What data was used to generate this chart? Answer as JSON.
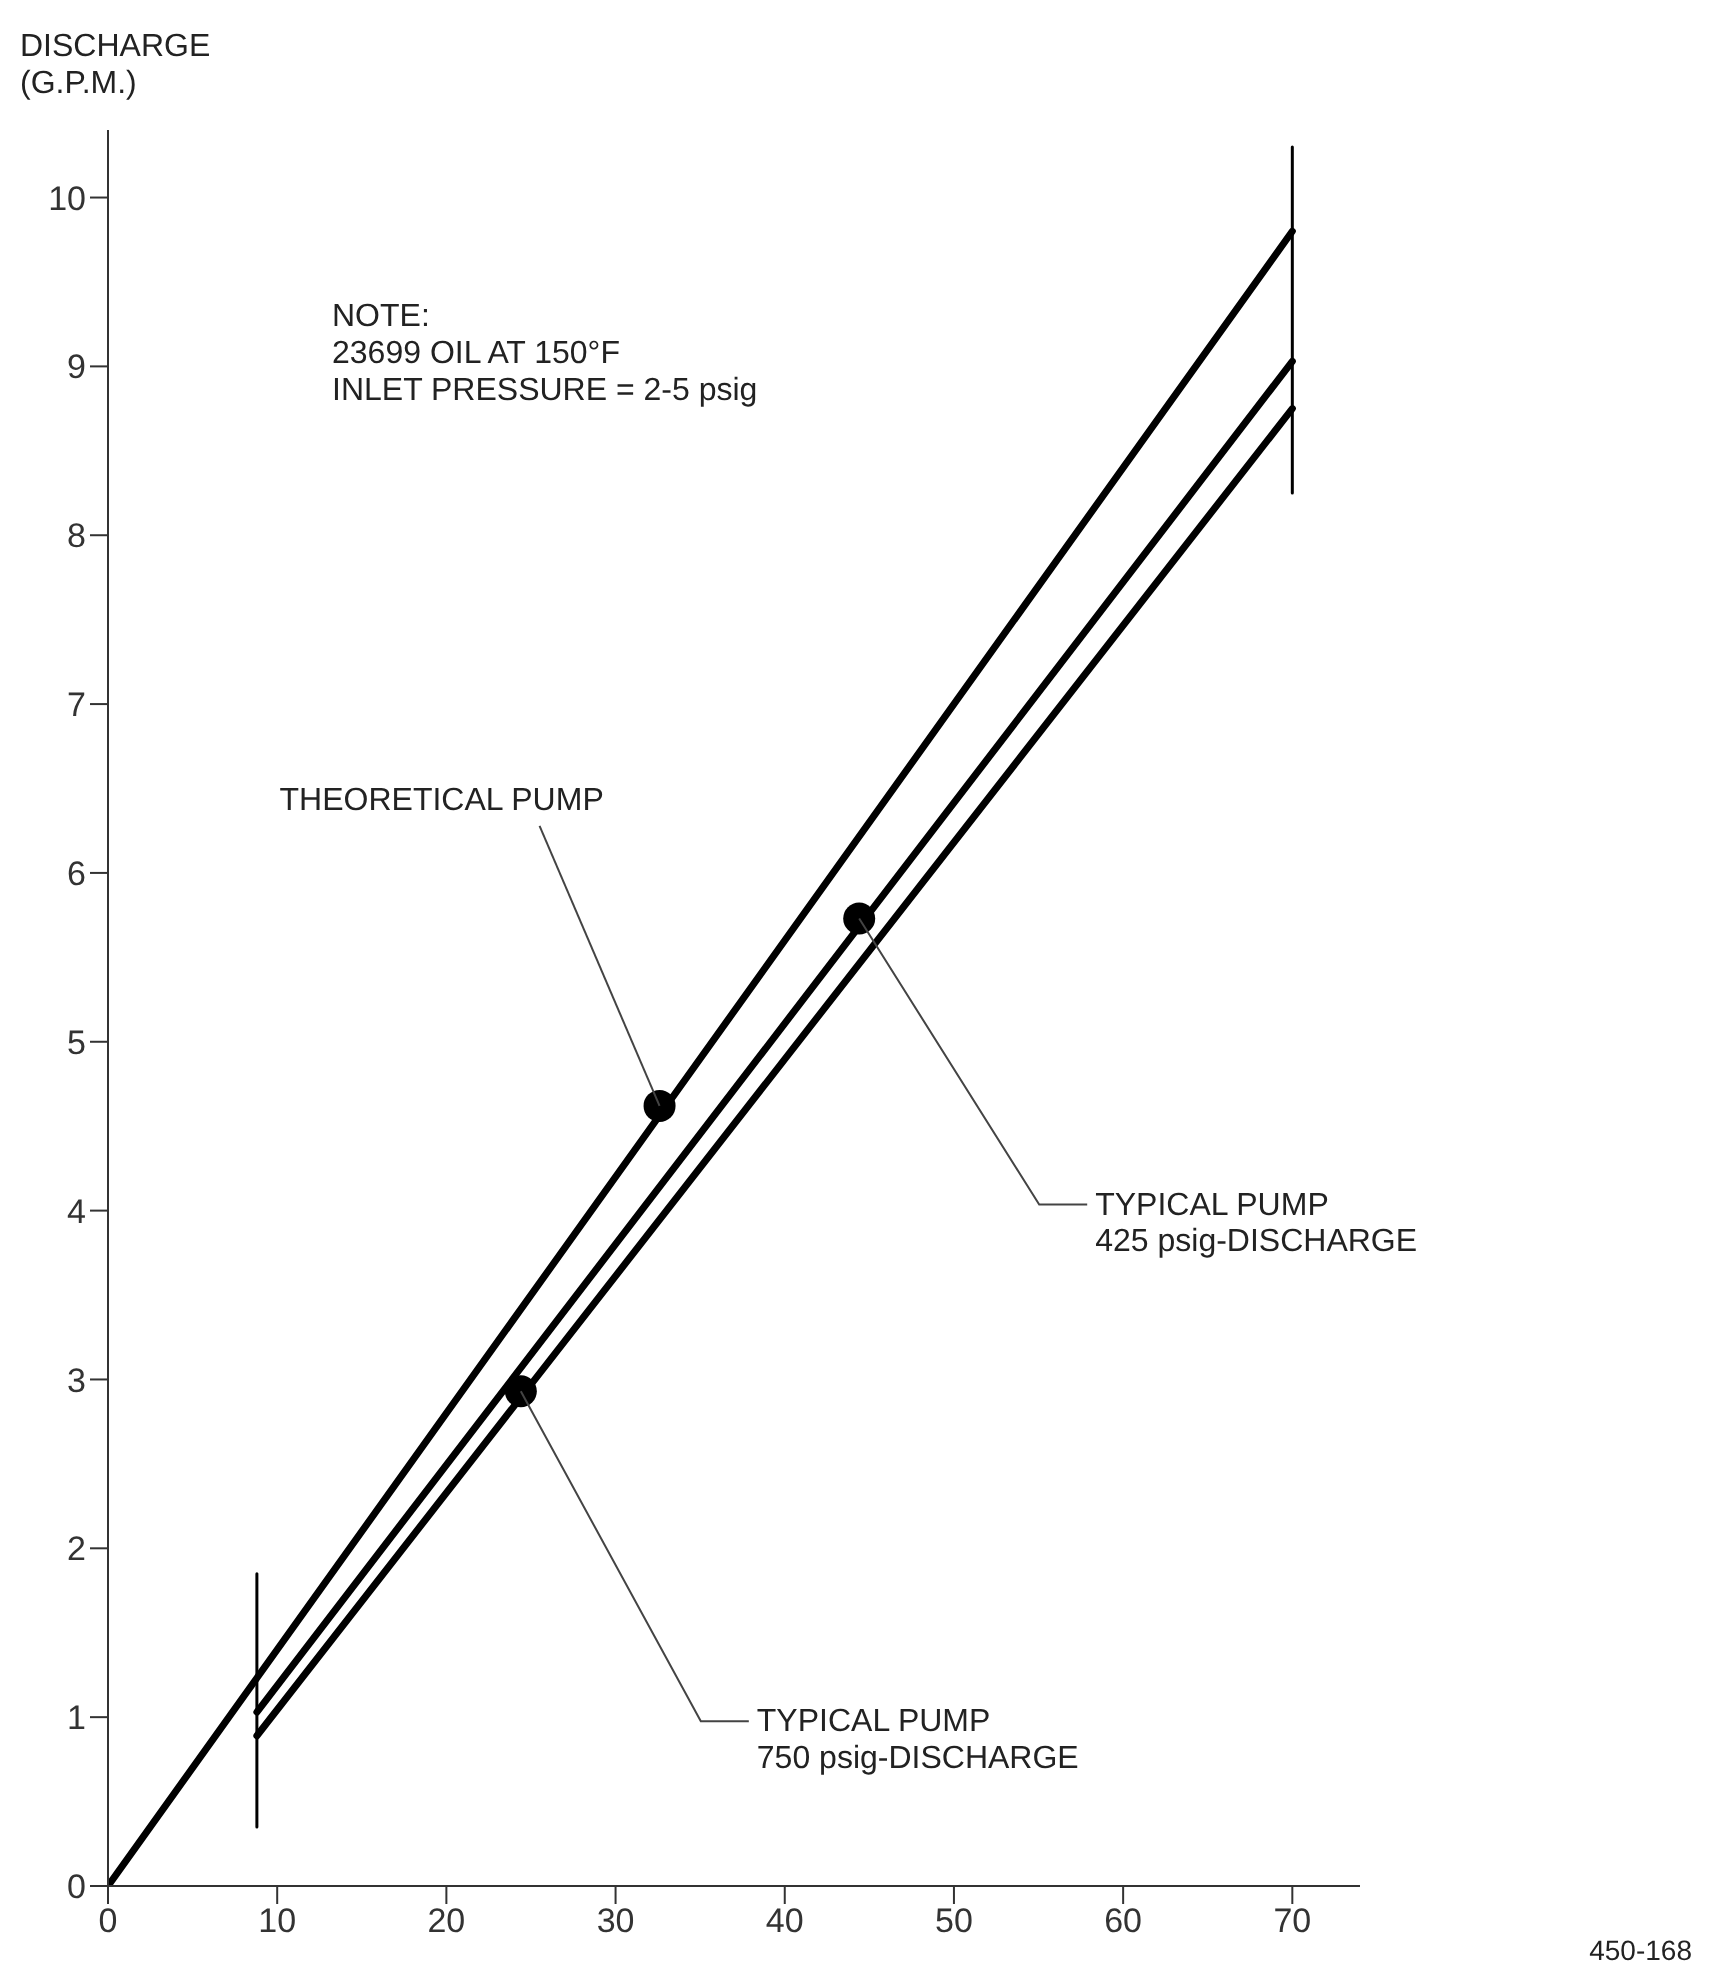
{
  "chart_data": {
    "type": "line",
    "ylabel": "DISCHARGE\n(G.P.M.)",
    "xlim": [
      0,
      74
    ],
    "xticks": [
      0,
      10,
      20,
      30,
      40,
      50,
      60,
      70
    ],
    "ylim": [
      0,
      10.4
    ],
    "yticks": [
      0,
      1,
      2,
      3,
      4,
      5,
      6,
      7,
      8,
      9,
      10
    ],
    "series": [
      {
        "color": "#000000",
        "x": [
          0,
          70
        ],
        "values": [
          0,
          9.8
        ]
      },
      {
        "color": "#000000",
        "x": [
          8.8,
          70
        ],
        "values": [
          1.03,
          9.03
        ]
      },
      {
        "color": "#000000",
        "x": [
          8.8,
          70
        ],
        "values": [
          0.89,
          8.75
        ]
      },
      {
        "color": "#000000",
        "x": [
          8.8,
          8.8
        ],
        "values": [
          0.35,
          1.85
        ]
      },
      {
        "color": "#000000",
        "x": [
          70,
          70
        ],
        "values": [
          8.25,
          10.3
        ]
      },
      {
        "type": "scatter",
        "color": "#000000",
        "marker": "circle",
        "x": [
          32.6,
          44.4,
          24.4
        ],
        "values": [
          4.62,
          5.73,
          2.93
        ]
      }
    ],
    "annotations": [
      "NOTE:\n23699 OIL AT 150°F\nINLET PRESSURE = 2-5 psig",
      {
        "text": "THEORETICAL PUMP",
        "x": 32.6,
        "y": 4.62
      },
      {
        "text": "TYPICAL PUMP\n425 psig-DISCHARGE",
        "x": 44.4,
        "y": 5.73
      },
      {
        "text": "TYPICAL PUMP\n750 psig-DISCHARGE",
        "x": 24.4,
        "y": 2.93
      },
      "450-168"
    ]
  }
}
